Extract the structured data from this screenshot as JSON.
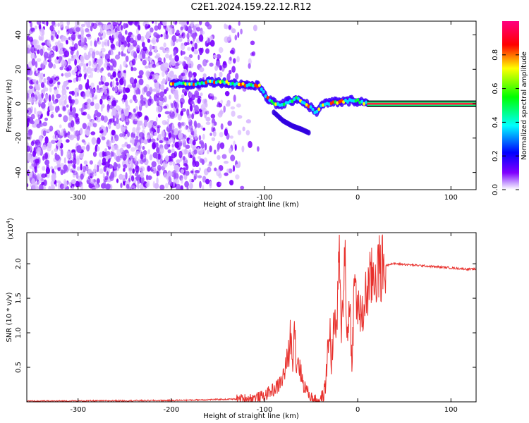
{
  "title": "C2E1.2024.159.22.12.R12",
  "chart_data": [
    {
      "type": "heatmap",
      "xlabel": "Height of straight line (km)",
      "ylabel": "Frequency (Hz)",
      "xlim": [
        -355,
        127
      ],
      "ylim": [
        -50,
        48
      ],
      "x_ticks": [
        -300,
        -200,
        -100,
        0,
        100
      ],
      "y_ticks": [
        40,
        20,
        0,
        -20,
        -40
      ],
      "colorbar": {
        "label": "Normalized spectral amplitude",
        "range": [
          0.0,
          1.0
        ],
        "ticks": [
          "0.0",
          "0.2",
          "0.4",
          "0.6",
          "0.8"
        ],
        "colors": [
          "#ffffff",
          "#c8a0ff",
          "#8000ff",
          "#0000ff",
          "#00ffff",
          "#00ff00",
          "#ffff00",
          "#ff0000",
          "#ff0080"
        ]
      },
      "ridge": {
        "x": [
          -200,
          -180,
          -160,
          -140,
          -120,
          -105,
          -95,
          -85,
          -75,
          -65,
          -55,
          -45,
          -40,
          -35,
          -25,
          -15,
          -5,
          5,
          10,
          127
        ],
        "y": [
          12,
          11,
          13,
          12,
          11,
          10,
          2,
          -1,
          1,
          3,
          0,
          -5,
          -2,
          0,
          1,
          1,
          2,
          1,
          0,
          0
        ]
      },
      "branch": {
        "x": [
          -90,
          -80,
          -70,
          -60,
          -52
        ],
        "y": [
          -5,
          -10,
          -13,
          -15,
          -17
        ]
      },
      "noise_region": [
        -355,
        -120
      ],
      "constant_band": {
        "x_start": 10,
        "y": 0
      }
    },
    {
      "type": "line",
      "xlabel": "Height of straight line (km)",
      "ylabel": "SNR (10 * v/v)",
      "exponent_label": "(x10⁴)",
      "exponent_base": "(x10",
      "exponent_sup": "4",
      "exponent_close": ")",
      "xlim": [
        -355,
        127
      ],
      "ylim": [
        0.0,
        2.45
      ],
      "x_ticks": [
        -300,
        -200,
        -100,
        0,
        100
      ],
      "y_ticks": [
        "0.5",
        "1.0",
        "1.5",
        "2.0"
      ],
      "color": "#e8302c",
      "x": [
        -355,
        -200,
        -130,
        -110,
        -100,
        -95,
        -90,
        -86,
        -82,
        -78,
        -74,
        -72,
        -70,
        -68,
        -66,
        -64,
        -62,
        -60,
        -58,
        -55,
        -52,
        -48,
        -44,
        -40,
        -37,
        -35,
        -33,
        -30,
        -28,
        -26,
        -24,
        -22,
        -20,
        -18,
        -16,
        -14,
        -12,
        -10,
        -8,
        -6,
        -4,
        -2,
        0,
        2,
        4,
        6,
        8,
        10,
        14,
        18,
        22,
        26,
        30,
        35,
        40,
        50,
        60,
        70,
        80,
        90,
        100,
        110,
        120,
        127
      ],
      "y": [
        0.01,
        0.02,
        0.04,
        0.06,
        0.09,
        0.14,
        0.18,
        0.22,
        0.3,
        0.45,
        0.7,
        1.0,
        0.55,
        1.25,
        0.5,
        0.65,
        0.48,
        0.35,
        0.25,
        0.18,
        0.1,
        0.05,
        0.03,
        0.04,
        0.08,
        0.2,
        0.55,
        1.1,
        0.5,
        1.15,
        1.0,
        1.25,
        2.1,
        1.1,
        1.35,
        2.45,
        0.9,
        1.3,
        1.2,
        0.6,
        1.55,
        1.7,
        1.25,
        1.4,
        1.1,
        1.3,
        1.5,
        1.6,
        1.75,
        1.85,
        1.9,
        1.95,
        1.97,
        2.0,
        2.0,
        1.99,
        1.98,
        1.97,
        1.96,
        1.95,
        1.94,
        1.93,
        1.92,
        1.92
      ]
    }
  ]
}
